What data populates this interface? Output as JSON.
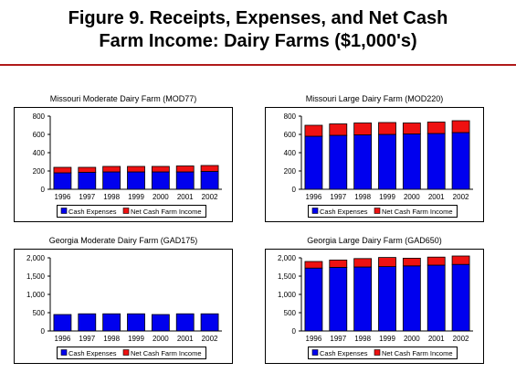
{
  "figure": {
    "title_line1": "Figure 9.  Receipts, Expenses, and Net Cash",
    "title_line2": "Farm Income:  Dairy Farms ($1,000's)"
  },
  "colors": {
    "cash_expenses": "#0000ee",
    "net_cash_farm_income": "#ee1111",
    "title_rule": "#b01a1a",
    "grid": "#000000"
  },
  "chart_data": [
    {
      "type": "bar",
      "stacked": true,
      "title": "Missouri Moderate Dairy Farm (MOD77)",
      "categories": [
        "1996",
        "1997",
        "1998",
        "1999",
        "2000",
        "2001",
        "2002"
      ],
      "series": [
        {
          "name": "Cash Expenses",
          "values": [
            180,
            185,
            190,
            190,
            190,
            190,
            195
          ]
        },
        {
          "name": "Net Cash Farm Income",
          "values": [
            60,
            55,
            60,
            60,
            60,
            65,
            65
          ]
        }
      ],
      "ylim": [
        0,
        800
      ],
      "yticks": [
        "0",
        "200",
        "400",
        "600",
        "800"
      ],
      "ytick_values": [
        0,
        200,
        400,
        600,
        800
      ],
      "legend": "bottom",
      "grid": false
    },
    {
      "type": "bar",
      "stacked": true,
      "title": "Missouri Large Dairy Farm (MOD220)",
      "categories": [
        "1996",
        "1997",
        "1998",
        "1999",
        "2000",
        "2001",
        "2002"
      ],
      "series": [
        {
          "name": "Cash Expenses",
          "values": [
            580,
            590,
            595,
            600,
            605,
            610,
            620
          ]
        },
        {
          "name": "Net Cash Farm Income",
          "values": [
            120,
            125,
            130,
            130,
            120,
            125,
            130
          ]
        }
      ],
      "ylim": [
        0,
        800
      ],
      "yticks": [
        "0",
        "200",
        "400",
        "600",
        "800"
      ],
      "ytick_values": [
        0,
        200,
        400,
        600,
        800
      ],
      "legend": "bottom",
      "grid": false
    },
    {
      "type": "bar",
      "stacked": true,
      "title": "Georgia Moderate Dairy Farm (GAD175)",
      "categories": [
        "1996",
        "1997",
        "1998",
        "1999",
        "2000",
        "2001",
        "2002"
      ],
      "series": [
        {
          "name": "Cash Expenses",
          "values": [
            450,
            470,
            470,
            470,
            450,
            470,
            470
          ]
        },
        {
          "name": "Net Cash Farm Income",
          "values": [
            0,
            0,
            0,
            0,
            0,
            0,
            0
          ]
        }
      ],
      "ylim": [
        0,
        2000
      ],
      "yticks": [
        "0",
        "500",
        "1,000",
        "1,500",
        "2,000"
      ],
      "ytick_values": [
        0,
        500,
        1000,
        1500,
        2000
      ],
      "legend": "bottom",
      "grid": false
    },
    {
      "type": "bar",
      "stacked": true,
      "title": "Georgia Large Dairy Farm (GAD650)",
      "categories": [
        "1996",
        "1997",
        "1998",
        "1999",
        "2000",
        "2001",
        "2002"
      ],
      "series": [
        {
          "name": "Cash Expenses",
          "values": [
            1720,
            1740,
            1750,
            1760,
            1780,
            1800,
            1820
          ]
        },
        {
          "name": "Net Cash Farm Income",
          "values": [
            180,
            200,
            230,
            250,
            210,
            220,
            230
          ]
        }
      ],
      "ylim": [
        0,
        2000
      ],
      "yticks": [
        "0",
        "500",
        "1,000",
        "1,500",
        "2,000"
      ],
      "ytick_values": [
        0,
        500,
        1000,
        1500,
        2000
      ],
      "legend": "bottom",
      "grid": false
    }
  ]
}
